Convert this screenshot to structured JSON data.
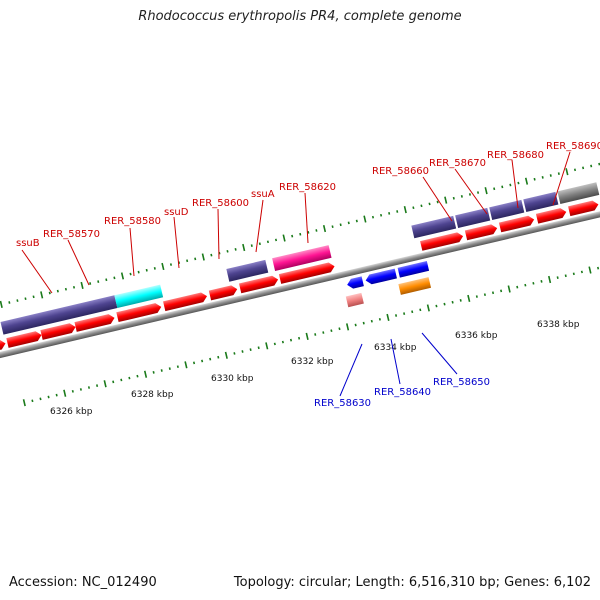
{
  "title": "Rhodococcus erythropolis PR4, complete genome",
  "footer": {
    "accession_label": "Accession: NC_012490",
    "summary": "Topology: circular; Length: 6,516,310 bp; Genes: 6,102"
  },
  "scale_labels": [
    "6326 kbp",
    "6328 kbp",
    "6330 kbp",
    "6332 kbp",
    "6334 kbp",
    "6336 kbp",
    "6338 kbp"
  ],
  "forward_gene_labels": [
    "ssuB",
    "RER_58570",
    "RER_58580",
    "ssuD",
    "RER_58600",
    "ssuA",
    "RER_58620",
    "RER_58660",
    "RER_58670",
    "RER_58680",
    "RER_58690"
  ],
  "reverse_gene_labels": [
    "RER_58630",
    "RER_58640",
    "RER_58650"
  ],
  "colors": {
    "forward_label": "#cc0000",
    "reverse_label": "#0000cc",
    "cds": "#ff0000",
    "reverse_gene": "#0000ff",
    "slate_feature": "#4e4490",
    "cyan_feature": "#00ffff",
    "magenta_feature": "#ff1493",
    "orange_feature": "#ff8c00",
    "pink_feature": "#f08080",
    "gray_feature": "#808080",
    "backbone": "#8c8c8c",
    "tick": "#1a7a1a"
  }
}
